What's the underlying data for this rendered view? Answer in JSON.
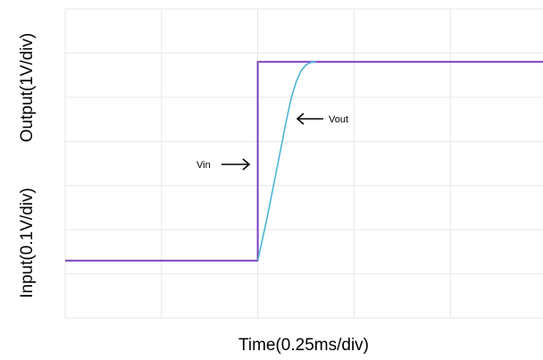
{
  "chart_data": {
    "type": "line",
    "xlabel": "Time(0.25ms/div)",
    "ylabel_top": "Output(1V/div)",
    "ylabel_bottom": "Input(0.1V/div)",
    "grid": true,
    "x_divisions": 5,
    "y_divisions": 7,
    "xlim": [
      0,
      5
    ],
    "ylim": [
      0,
      7
    ],
    "series": [
      {
        "name": "Vin",
        "color": "#7b3fc0",
        "x": [
          0,
          2,
          2,
          5
        ],
        "y": [
          1.3,
          1.3,
          5.8,
          5.8
        ]
      },
      {
        "name": "Vout",
        "color": "#4bb6d6",
        "x": [
          2,
          2.1,
          2.2,
          2.3,
          2.35,
          2.4,
          2.45,
          2.5,
          2.55,
          2.6
        ],
        "y": [
          1.3,
          2.3,
          3.4,
          4.5,
          5.0,
          5.35,
          5.6,
          5.73,
          5.79,
          5.8
        ]
      }
    ],
    "annotations": [
      {
        "text": "Vin",
        "arrow": "right"
      },
      {
        "text": "Vout",
        "arrow": "left"
      }
    ]
  }
}
